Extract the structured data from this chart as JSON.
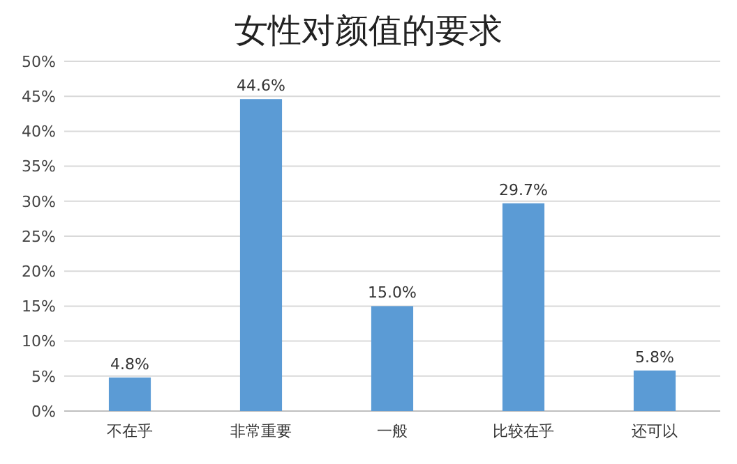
{
  "chart_data": {
    "type": "bar",
    "title": "女性对颜值的要求",
    "categories": [
      "不在乎",
      "非常重要",
      "一般",
      "比较在乎",
      "还可以"
    ],
    "values": [
      4.8,
      44.6,
      15.0,
      29.7,
      5.8
    ],
    "value_labels": [
      "4.8%",
      "44.6%",
      "15.0%",
      "29.7%",
      "5.8%"
    ],
    "color": "#5b9bd5",
    "ylim": [
      0,
      50
    ],
    "yticks": [
      {
        "value": 0,
        "label": "0%"
      },
      {
        "value": 5,
        "label": "5%"
      },
      {
        "value": 10,
        "label": "10%"
      },
      {
        "value": 15,
        "label": "15%"
      },
      {
        "value": 20,
        "label": "20%"
      },
      {
        "value": 25,
        "label": "25%"
      },
      {
        "value": 30,
        "label": "30%"
      },
      {
        "value": 35,
        "label": "35%"
      },
      {
        "value": 40,
        "label": "40%"
      },
      {
        "value": 45,
        "label": "45%"
      },
      {
        "value": 50,
        "label": "50%"
      }
    ],
    "grid": true
  }
}
